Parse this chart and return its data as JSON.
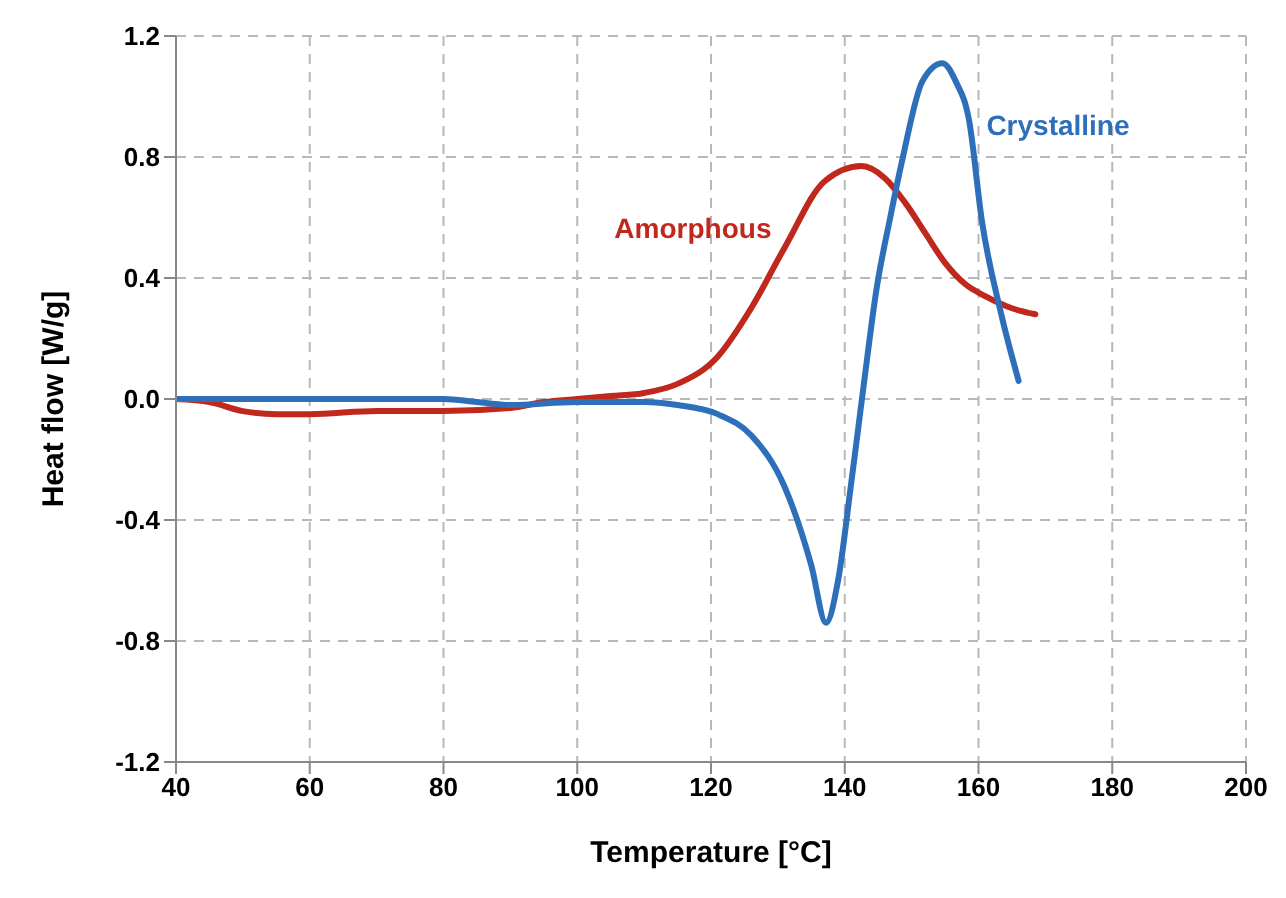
{
  "chart_data": {
    "type": "line",
    "xlabel": "Temperature [°C]",
    "ylabel": "Heat flow [W/g]",
    "xlim": [
      40,
      200
    ],
    "xticks": [
      40,
      60,
      80,
      100,
      120,
      140,
      160,
      180,
      200
    ],
    "ylim": [
      -1.2,
      1.2
    ],
    "yticks": [
      {
        "value": -1.2,
        "label": "-1.2"
      },
      {
        "value": -0.8,
        "label": "-0.8"
      },
      {
        "value": -0.4,
        "label": "-0.4"
      },
      {
        "value": 0,
        "label": "0.0"
      },
      {
        "value": 0.4,
        "label": "0.4"
      },
      {
        "value": 0.8,
        "label": "0.8"
      },
      {
        "value": 1.2,
        "label": "1.2"
      }
    ],
    "grid": true,
    "line_style": "solid",
    "marker": "none",
    "legend": false,
    "series": [
      {
        "name": "Amorphous",
        "color": "#c0281e",
        "x": [
          40,
          45,
          50,
          55,
          60,
          70,
          80,
          90,
          95,
          100,
          105,
          110,
          115,
          121,
          126,
          131,
          137,
          142.5,
          146,
          149,
          152,
          155,
          158,
          161,
          165,
          168.5
        ],
        "values": [
          0,
          -0.01,
          -0.04,
          -0.05,
          -0.05,
          -0.04,
          -0.04,
          -0.03,
          -0.01,
          0,
          0.01,
          0.02,
          0.05,
          0.14,
          0.3,
          0.5,
          0.72,
          0.77,
          0.73,
          0.65,
          0.55,
          0.45,
          0.38,
          0.34,
          0.3,
          0.28
        ]
      },
      {
        "name": "Crystalline",
        "color": "#2e6fba",
        "x": [
          40,
          60,
          80,
          85,
          90,
          100,
          110,
          115,
          121,
          126,
          131,
          135,
          137.2,
          139,
          140.9,
          142.8,
          144.8,
          146.8,
          148.7,
          151.6,
          154.6,
          156.6,
          158.6,
          160.5,
          163.4,
          166
        ],
        "values": [
          0,
          0,
          0,
          -0.01,
          -0.02,
          -0.01,
          -0.01,
          -0.02,
          -0.05,
          -0.12,
          -0.29,
          -0.55,
          -0.74,
          -0.6,
          -0.29,
          0.04,
          0.37,
          0.6,
          0.8,
          1.05,
          1.11,
          1.05,
          0.92,
          0.59,
          0.28,
          0.06
        ]
      }
    ]
  }
}
